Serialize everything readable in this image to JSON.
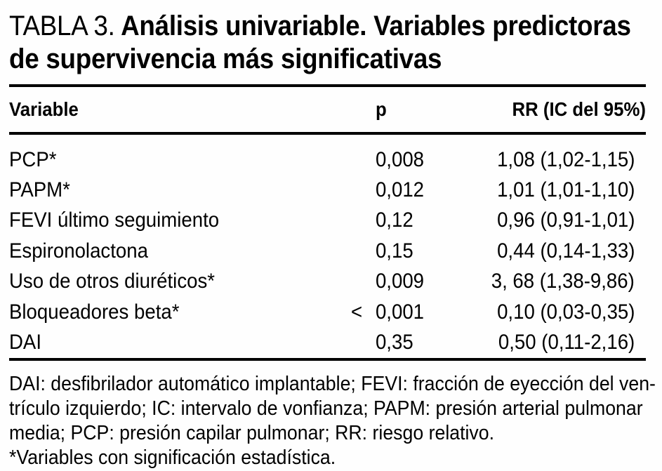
{
  "title": {
    "label": "TABLA 3.",
    "line1_bold": "Análisis univariable. Variables predictoras",
    "line2_bold": "de supervivencia más significativas"
  },
  "table": {
    "columns": {
      "variable": "Variable",
      "p": "p",
      "rr": "RR (IC del 95%)"
    },
    "rows": [
      {
        "variable": "PCP*",
        "p_prefix": "",
        "p": "0,008",
        "rr": "1,08 (1,02-1,15)"
      },
      {
        "variable": "PAPM*",
        "p_prefix": "",
        "p": "0,012",
        "rr": "1,01 (1,01-1,10)"
      },
      {
        "variable": "FEVI último seguimiento",
        "p_prefix": "",
        "p": "0,12",
        "rr": "0,96 (0,91-1,01)"
      },
      {
        "variable": "Espironolactona",
        "p_prefix": "",
        "p": "0,15",
        "rr": "0,44 (0,14-1,33)"
      },
      {
        "variable": "Uso de otros diuréticos*",
        "p_prefix": "",
        "p": "0,009",
        "rr": "3, 68 (1,38-9,86)"
      },
      {
        "variable": "Bloqueadores beta*",
        "p_prefix": "<",
        "p": "0,001",
        "rr": "0,10 (0,03-0,35)"
      },
      {
        "variable": "DAI",
        "p_prefix": "",
        "p": "0,35",
        "rr": "0,50 (0,11-2,16)"
      }
    ]
  },
  "footnotes": {
    "line1": "DAI: desfibrilador automático implantable; FEVI: fracción de eyección del ven-",
    "line2": "trículo izquierdo; IC: intervalo de vonfianza; PAPM: presión arterial pulmonar",
    "line3": "media; PCP: presión capilar pulmonar; RR: riesgo relativo.",
    "line4": "*Variables con significación estadística."
  },
  "colors": {
    "text": "#000000",
    "background": "#fefefe",
    "rule": "#000000"
  }
}
